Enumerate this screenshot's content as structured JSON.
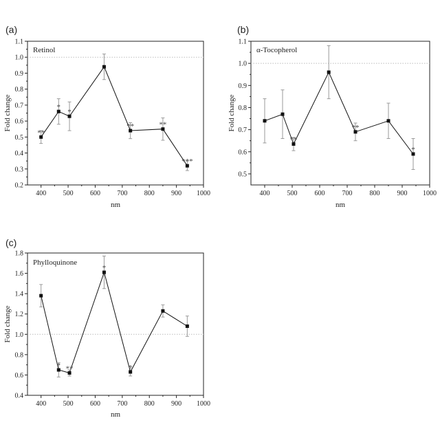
{
  "chart_data": [
    {
      "type": "line",
      "panel_label": "(a)",
      "title": "Retinol",
      "xlabel": "nm",
      "ylabel": "Fold change",
      "xlim": [
        350,
        1000
      ],
      "ylim": [
        0.2,
        1.1
      ],
      "xticks": [
        400,
        500,
        600,
        700,
        800,
        900,
        1000
      ],
      "yticks": [
        0.2,
        0.3,
        0.4,
        0.5,
        0.6,
        0.7,
        0.8,
        0.9,
        1.0,
        1.1
      ],
      "xtick_labels": [
        "400",
        "500",
        "600",
        "700",
        "800",
        "900",
        "1000"
      ],
      "ytick_labels": [
        "0.2",
        "0.3",
        "0.4",
        "0.5",
        "0.6",
        "0.7",
        "0.8",
        "0.9",
        "1.0",
        "1.1"
      ],
      "reference_line": 1.0,
      "grid": false,
      "series": [
        {
          "x": [
            400,
            465,
            505,
            633,
            730,
            850,
            940
          ],
          "y": [
            0.5,
            0.66,
            0.63,
            0.94,
            0.54,
            0.55,
            0.32
          ],
          "err": [
            0.04,
            0.08,
            0.09,
            0.08,
            0.05,
            0.07,
            0.03
          ],
          "significance": [
            "**",
            "*",
            "*",
            "",
            "**",
            "**",
            "***"
          ]
        }
      ]
    },
    {
      "type": "line",
      "panel_label": "(b)",
      "title": "α-Tocopherol",
      "xlabel": "nm",
      "ylabel": "Fold change",
      "xlim": [
        350,
        1000
      ],
      "ylim": [
        0.45,
        1.1
      ],
      "xticks": [
        400,
        500,
        600,
        700,
        800,
        900,
        1000
      ],
      "yticks": [
        0.5,
        0.6,
        0.7,
        0.8,
        0.9,
        1.0,
        1.1
      ],
      "xtick_labels": [
        "400",
        "500",
        "600",
        "700",
        "800",
        "900",
        "1000"
      ],
      "ytick_labels": [
        "0.5",
        "0.6",
        "0.7",
        "0.8",
        "0.9",
        "1.0",
        "1.1"
      ],
      "reference_line": 1.0,
      "grid": false,
      "series": [
        {
          "x": [
            400,
            465,
            505,
            633,
            730,
            850,
            940
          ],
          "y": [
            0.74,
            0.77,
            0.635,
            0.96,
            0.69,
            0.74,
            0.59
          ],
          "err": [
            0.1,
            0.11,
            0.03,
            0.12,
            0.04,
            0.08,
            0.07
          ],
          "significance": [
            "",
            "",
            "**",
            "",
            "**",
            "",
            "*"
          ]
        }
      ]
    },
    {
      "type": "line",
      "panel_label": "(c)",
      "title": "Phylloquinone",
      "xlabel": "nm",
      "ylabel": "Fold change",
      "xlim": [
        350,
        1000
      ],
      "ylim": [
        0.4,
        1.8
      ],
      "xticks": [
        400,
        500,
        600,
        700,
        800,
        900,
        1000
      ],
      "yticks": [
        0.4,
        0.6,
        0.8,
        1.0,
        1.2,
        1.4,
        1.6,
        1.8
      ],
      "xtick_labels": [
        "400",
        "500",
        "600",
        "700",
        "800",
        "900",
        "1000"
      ],
      "ytick_labels": [
        "0.4",
        "0.6",
        "0.8",
        "1.0",
        "1.2",
        "1.4",
        "1.6",
        "1.8"
      ],
      "reference_line": 1.0,
      "grid": false,
      "series": [
        {
          "x": [
            400,
            465,
            505,
            633,
            730,
            850,
            940
          ],
          "y": [
            1.38,
            0.65,
            0.62,
            1.61,
            0.63,
            1.23,
            1.08
          ],
          "err": [
            0.11,
            0.07,
            0.03,
            0.16,
            0.04,
            0.06,
            0.1
          ],
          "significance": [
            "",
            "*",
            "**",
            "*",
            "*",
            "",
            ""
          ]
        }
      ]
    }
  ]
}
